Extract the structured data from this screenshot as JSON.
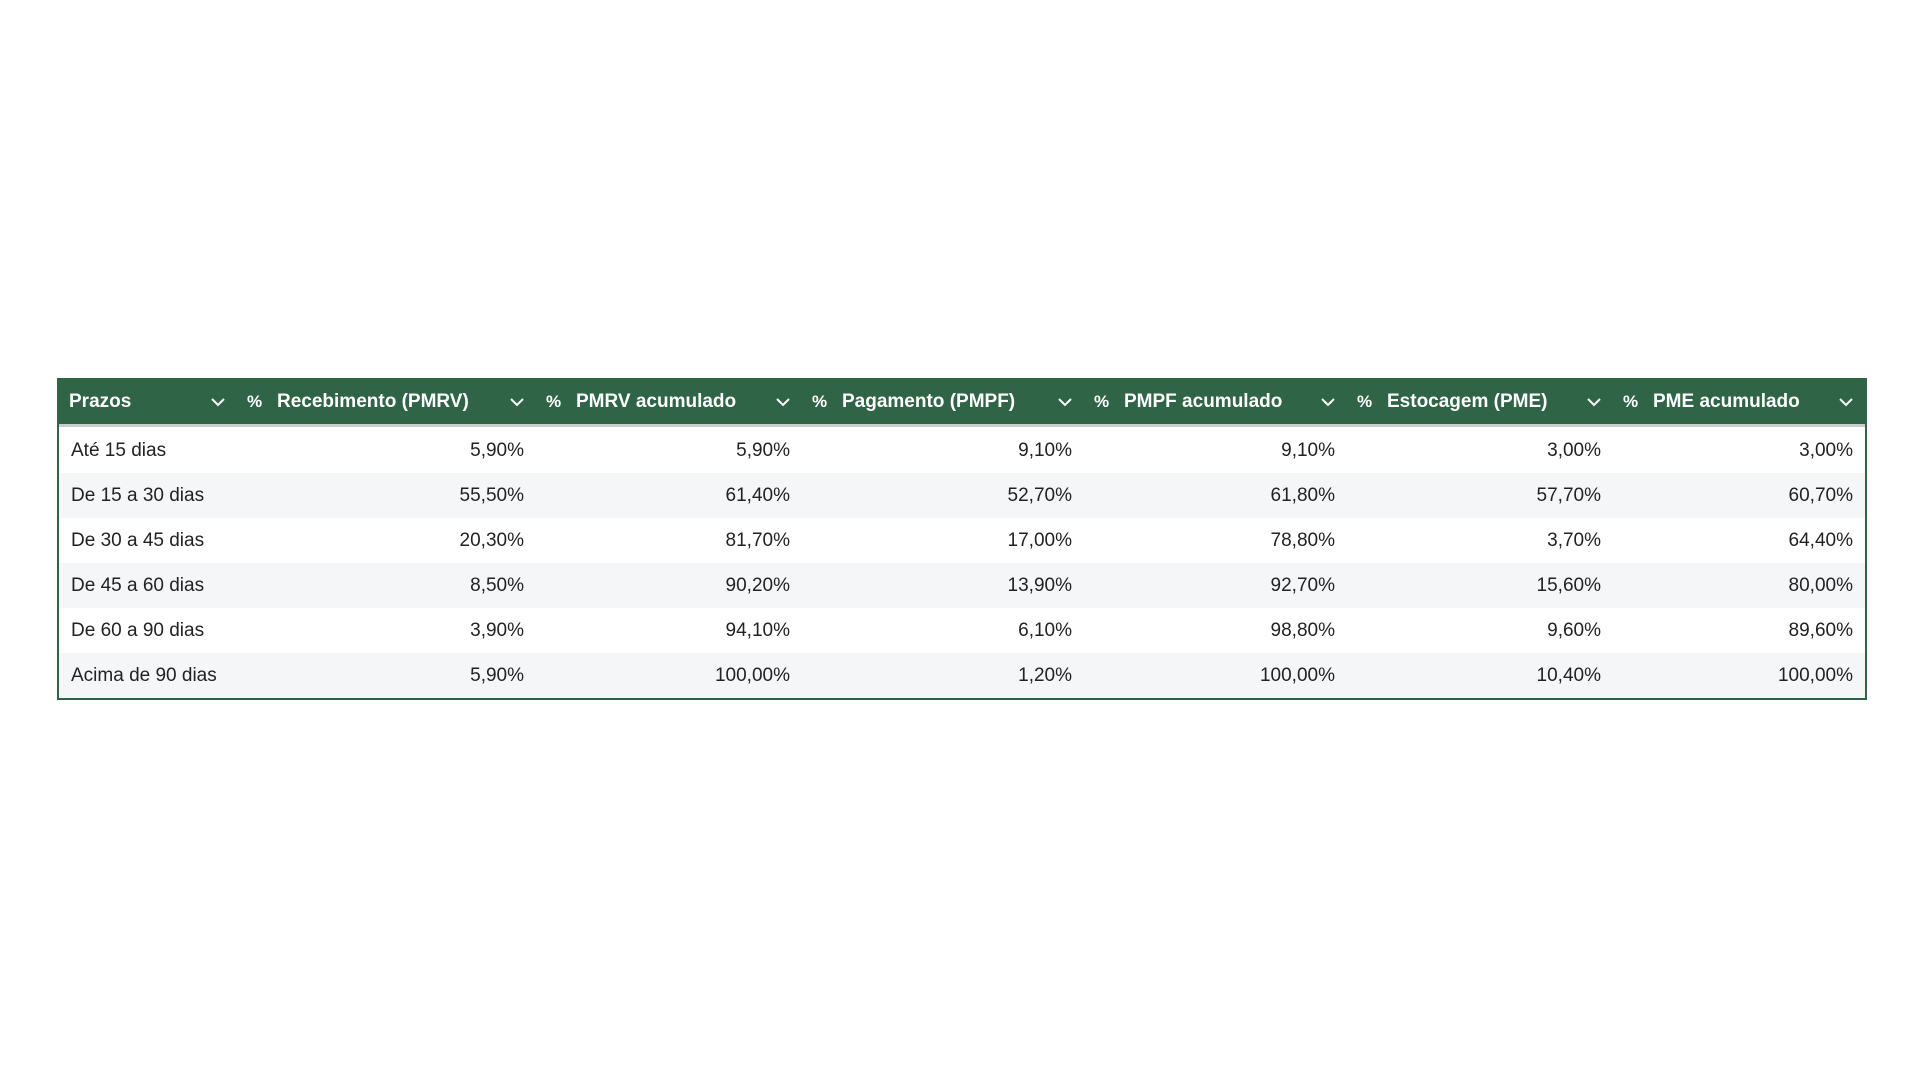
{
  "table": {
    "columns": [
      {
        "label": "Prazos"
      },
      {
        "icon": "%",
        "label": "Recebimento (PMRV)"
      },
      {
        "icon": "%",
        "label": "PMRV acumulado"
      },
      {
        "icon": "%",
        "label": "Pagamento (PMPF)"
      },
      {
        "icon": "%",
        "label": "PMPF acumulado"
      },
      {
        "icon": "%",
        "label": "Estocagem (PME)"
      },
      {
        "icon": "%",
        "label": "PME acumulado"
      }
    ],
    "rows": [
      [
        "Até 15 dias",
        "5,90%",
        "5,90%",
        "9,10%",
        "9,10%",
        "3,00%",
        "3,00%"
      ],
      [
        "De 15 a 30 dias",
        "55,50%",
        "61,40%",
        "52,70%",
        "61,80%",
        "57,70%",
        "60,70%"
      ],
      [
        "De 30 a 45 dias",
        "20,30%",
        "81,70%",
        "17,00%",
        "78,80%",
        "3,70%",
        "64,40%"
      ],
      [
        "De 45 a 60 dias",
        "8,50%",
        "90,20%",
        "13,90%",
        "92,70%",
        "15,60%",
        "80,00%"
      ],
      [
        "De 60 a 90 dias",
        "3,90%",
        "94,10%",
        "6,10%",
        "98,80%",
        "9,60%",
        "89,60%"
      ],
      [
        "Acima de 90 dias",
        "5,90%",
        "100,00%",
        "1,20%",
        "100,00%",
        "10,40%",
        "100,00%"
      ]
    ]
  }
}
